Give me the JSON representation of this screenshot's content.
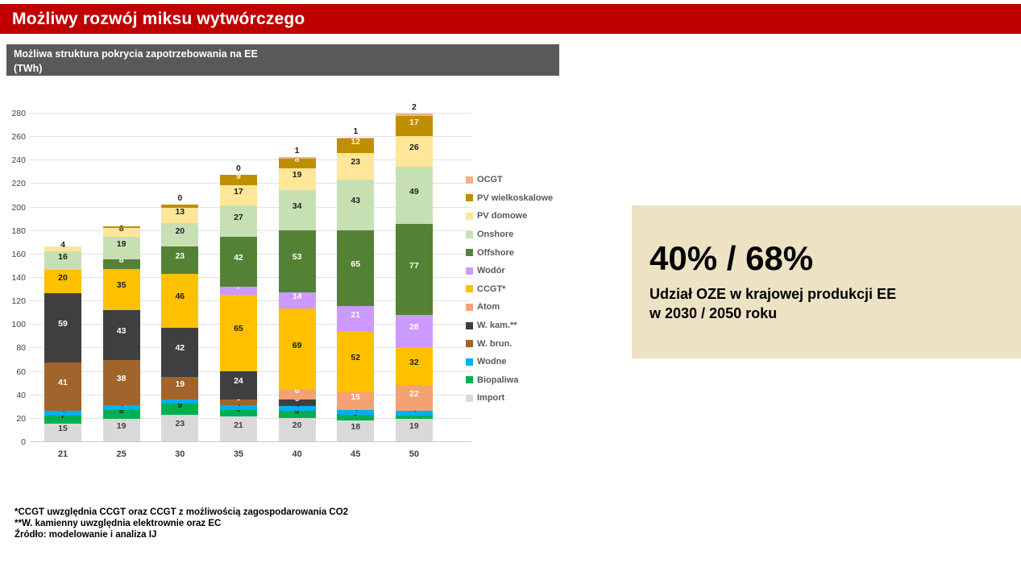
{
  "header": {
    "title": "Możliwy rozwój miksu wytwórczego",
    "bar_color": "#C00000"
  },
  "subtitle": {
    "line1": "Możliwa struktura pokrycia zapotrzebowania na EE",
    "line2": "(TWh)",
    "bg_color": "#595959"
  },
  "stat_panel": {
    "value": "40% / 68%",
    "line1": "Udział OZE w krajowej produkcji EE",
    "line2": "w 2030 / 2050 roku",
    "bg_color": "#EDE2C4"
  },
  "footnotes": [
    "*CCGT uwzględnia CCGT oraz CCGT z możliwością zagospodarowania CO2",
    "**W. kamienny uwzględnia elektrownie oraz EC",
    "Źródło: modelowanie i analiza IJ"
  ],
  "chart_data": {
    "type": "bar",
    "stacked": true,
    "title": "Możliwa struktura pokrycia zapotrzebowania na EE (TWh)",
    "xlabel": "rok",
    "ylabel": "TWh",
    "categories": [
      "21",
      "25",
      "30",
      "35",
      "40",
      "45",
      "50"
    ],
    "ylim": [
      0,
      280
    ],
    "ytick_step": 20,
    "grid": true,
    "legend_position": "right",
    "series": [
      {
        "name": "Import",
        "color": "#D9D9D9",
        "label_color": "#3f3f3f",
        "values": [
          15,
          19,
          23,
          21,
          20,
          18,
          19
        ]
      },
      {
        "name": "Biopaliwa",
        "color": "#00B050",
        "label_color": "#1f1f1f",
        "values": [
          7,
          8,
          9,
          6,
          6,
          5,
          3
        ]
      },
      {
        "name": "Wodne",
        "color": "#00B0F0",
        "label_color": "#1f1f1f",
        "values": [
          4,
          4,
          4,
          4,
          4,
          4,
          4
        ]
      },
      {
        "name": "W. brun.",
        "color": "#A0642C",
        "label_color": "#ffffff",
        "values": [
          41,
          38,
          19,
          5,
          0,
          0,
          0
        ]
      },
      {
        "name": "W. kam.**",
        "color": "#3F3F3F",
        "label_color": "#ffffff",
        "values": [
          59,
          43,
          42,
          24,
          6,
          0,
          0
        ]
      },
      {
        "name": "Atom",
        "color": "#F4A174",
        "label_color": "#ffffff",
        "values": [
          0,
          0,
          0,
          0,
          8,
          15,
          22
        ]
      },
      {
        "name": "CCGT*",
        "color": "#FFC000",
        "label_color": "#1f1f1f",
        "values": [
          20,
          35,
          46,
          65,
          69,
          52,
          32
        ]
      },
      {
        "name": "Wodór",
        "color": "#CC99FF",
        "label_color": "#ffffff",
        "values": [
          0,
          0,
          0,
          7,
          14,
          21,
          28
        ]
      },
      {
        "name": "Offshore",
        "color": "#548235",
        "label_color": "#ffffff",
        "values": [
          0,
          8,
          23,
          42,
          53,
          65,
          77
        ]
      },
      {
        "name": "Onshore",
        "color": "#C6E0B4",
        "label_color": "#1f1f1f",
        "values": [
          16,
          19,
          20,
          27,
          34,
          43,
          49
        ]
      },
      {
        "name": "PV domowe",
        "color": "#FFE699",
        "label_color": "#1f1f1f",
        "values": [
          4,
          8,
          13,
          17,
          19,
          23,
          26
        ]
      },
      {
        "name": "PV wielkoskalowe",
        "color": "#BF8F00",
        "label_color": "#FFF2CC",
        "values": [
          0,
          1,
          3,
          9,
          8,
          12,
          17
        ],
        "labels": [
          "",
          "",
          "",
          "9",
          "8",
          "12",
          "17"
        ]
      },
      {
        "name": "OCGT",
        "color": "#F4B183",
        "label_color": "#1f1f1f",
        "values": [
          0,
          0,
          0,
          0,
          1,
          1,
          2
        ],
        "labels": [
          "",
          "",
          "0",
          "0",
          "1",
          "1",
          "2"
        ],
        "label_above": true
      }
    ]
  }
}
